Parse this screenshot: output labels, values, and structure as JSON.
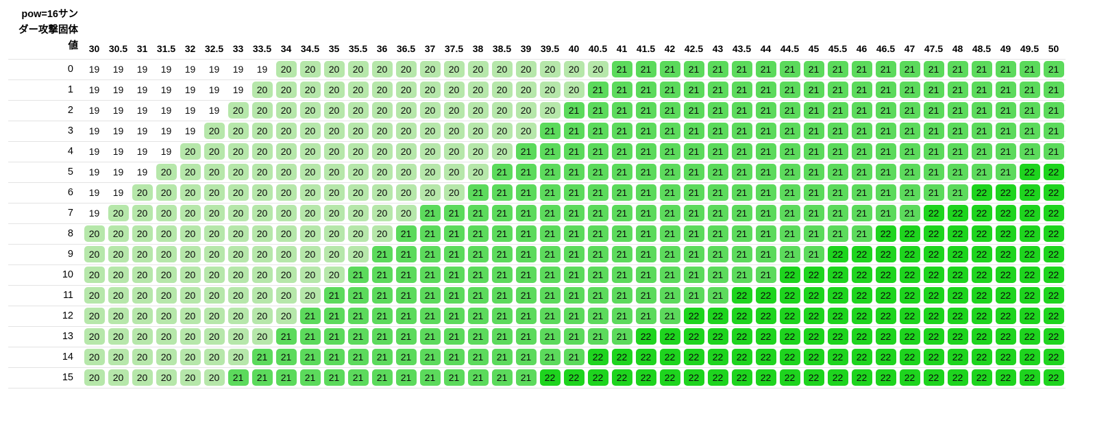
{
  "title": "pow=16サン\nダー攻撃固体\n値",
  "chart_data": {
    "type": "heatmap",
    "title": "pow=16サンダー攻撃固体値",
    "xlabel": "",
    "ylabel": "",
    "legend": "off",
    "grid": "horizontal-rules",
    "columns": [
      "30",
      "30.5",
      "31",
      "31.5",
      "32",
      "32.5",
      "33",
      "33.5",
      "34",
      "34.5",
      "35",
      "35.5",
      "36",
      "36.5",
      "37",
      "37.5",
      "38",
      "38.5",
      "39",
      "39.5",
      "40",
      "40.5",
      "41",
      "41.5",
      "42",
      "42.5",
      "43",
      "43.5",
      "44",
      "44.5",
      "45",
      "45.5",
      "46",
      "46.5",
      "47",
      "47.5",
      "48",
      "48.5",
      "49",
      "49.5",
      "50"
    ],
    "row_labels": [
      "0",
      "1",
      "2",
      "3",
      "4",
      "5",
      "6",
      "7",
      "8",
      "9",
      "10",
      "11",
      "12",
      "13",
      "14",
      "15"
    ],
    "values": [
      [
        19,
        19,
        19,
        19,
        19,
        19,
        19,
        19,
        20,
        20,
        20,
        20,
        20,
        20,
        20,
        20,
        20,
        20,
        20,
        20,
        20,
        20,
        21,
        21,
        21,
        21,
        21,
        21,
        21,
        21,
        21,
        21,
        21,
        21,
        21,
        21,
        21,
        21,
        21,
        21,
        21
      ],
      [
        19,
        19,
        19,
        19,
        19,
        19,
        19,
        20,
        20,
        20,
        20,
        20,
        20,
        20,
        20,
        20,
        20,
        20,
        20,
        20,
        20,
        21,
        21,
        21,
        21,
        21,
        21,
        21,
        21,
        21,
        21,
        21,
        21,
        21,
        21,
        21,
        21,
        21,
        21,
        21,
        21
      ],
      [
        19,
        19,
        19,
        19,
        19,
        19,
        20,
        20,
        20,
        20,
        20,
        20,
        20,
        20,
        20,
        20,
        20,
        20,
        20,
        20,
        21,
        21,
        21,
        21,
        21,
        21,
        21,
        21,
        21,
        21,
        21,
        21,
        21,
        21,
        21,
        21,
        21,
        21,
        21,
        21,
        21
      ],
      [
        19,
        19,
        19,
        19,
        19,
        20,
        20,
        20,
        20,
        20,
        20,
        20,
        20,
        20,
        20,
        20,
        20,
        20,
        20,
        21,
        21,
        21,
        21,
        21,
        21,
        21,
        21,
        21,
        21,
        21,
        21,
        21,
        21,
        21,
        21,
        21,
        21,
        21,
        21,
        21,
        21
      ],
      [
        19,
        19,
        19,
        19,
        20,
        20,
        20,
        20,
        20,
        20,
        20,
        20,
        20,
        20,
        20,
        20,
        20,
        20,
        21,
        21,
        21,
        21,
        21,
        21,
        21,
        21,
        21,
        21,
        21,
        21,
        21,
        21,
        21,
        21,
        21,
        21,
        21,
        21,
        21,
        21,
        21
      ],
      [
        19,
        19,
        19,
        20,
        20,
        20,
        20,
        20,
        20,
        20,
        20,
        20,
        20,
        20,
        20,
        20,
        20,
        21,
        21,
        21,
        21,
        21,
        21,
        21,
        21,
        21,
        21,
        21,
        21,
        21,
        21,
        21,
        21,
        21,
        21,
        21,
        21,
        21,
        21,
        22,
        22
      ],
      [
        19,
        19,
        20,
        20,
        20,
        20,
        20,
        20,
        20,
        20,
        20,
        20,
        20,
        20,
        20,
        20,
        21,
        21,
        21,
        21,
        21,
        21,
        21,
        21,
        21,
        21,
        21,
        21,
        21,
        21,
        21,
        21,
        21,
        21,
        21,
        21,
        21,
        22,
        22,
        22,
        22
      ],
      [
        19,
        20,
        20,
        20,
        20,
        20,
        20,
        20,
        20,
        20,
        20,
        20,
        20,
        20,
        21,
        21,
        21,
        21,
        21,
        21,
        21,
        21,
        21,
        21,
        21,
        21,
        21,
        21,
        21,
        21,
        21,
        21,
        21,
        21,
        21,
        22,
        22,
        22,
        22,
        22,
        22
      ],
      [
        20,
        20,
        20,
        20,
        20,
        20,
        20,
        20,
        20,
        20,
        20,
        20,
        20,
        21,
        21,
        21,
        21,
        21,
        21,
        21,
        21,
        21,
        21,
        21,
        21,
        21,
        21,
        21,
        21,
        21,
        21,
        21,
        21,
        22,
        22,
        22,
        22,
        22,
        22,
        22,
        22
      ],
      [
        20,
        20,
        20,
        20,
        20,
        20,
        20,
        20,
        20,
        20,
        20,
        20,
        21,
        21,
        21,
        21,
        21,
        21,
        21,
        21,
        21,
        21,
        21,
        21,
        21,
        21,
        21,
        21,
        21,
        21,
        21,
        22,
        22,
        22,
        22,
        22,
        22,
        22,
        22,
        22,
        22
      ],
      [
        20,
        20,
        20,
        20,
        20,
        20,
        20,
        20,
        20,
        20,
        20,
        21,
        21,
        21,
        21,
        21,
        21,
        21,
        21,
        21,
        21,
        21,
        21,
        21,
        21,
        21,
        21,
        21,
        21,
        22,
        22,
        22,
        22,
        22,
        22,
        22,
        22,
        22,
        22,
        22,
        22
      ],
      [
        20,
        20,
        20,
        20,
        20,
        20,
        20,
        20,
        20,
        20,
        21,
        21,
        21,
        21,
        21,
        21,
        21,
        21,
        21,
        21,
        21,
        21,
        21,
        21,
        21,
        21,
        21,
        22,
        22,
        22,
        22,
        22,
        22,
        22,
        22,
        22,
        22,
        22,
        22,
        22,
        22
      ],
      [
        20,
        20,
        20,
        20,
        20,
        20,
        20,
        20,
        20,
        21,
        21,
        21,
        21,
        21,
        21,
        21,
        21,
        21,
        21,
        21,
        21,
        21,
        21,
        21,
        21,
        22,
        22,
        22,
        22,
        22,
        22,
        22,
        22,
        22,
        22,
        22,
        22,
        22,
        22,
        22,
        22
      ],
      [
        20,
        20,
        20,
        20,
        20,
        20,
        20,
        20,
        21,
        21,
        21,
        21,
        21,
        21,
        21,
        21,
        21,
        21,
        21,
        21,
        21,
        21,
        21,
        22,
        22,
        22,
        22,
        22,
        22,
        22,
        22,
        22,
        22,
        22,
        22,
        22,
        22,
        22,
        22,
        22,
        22
      ],
      [
        20,
        20,
        20,
        20,
        20,
        20,
        20,
        21,
        21,
        21,
        21,
        21,
        21,
        21,
        21,
        21,
        21,
        21,
        21,
        21,
        21,
        22,
        22,
        22,
        22,
        22,
        22,
        22,
        22,
        22,
        22,
        22,
        22,
        22,
        22,
        22,
        22,
        22,
        22,
        22,
        22
      ],
      [
        20,
        20,
        20,
        20,
        20,
        20,
        21,
        21,
        21,
        21,
        21,
        21,
        21,
        21,
        21,
        21,
        21,
        21,
        21,
        22,
        22,
        22,
        22,
        22,
        22,
        22,
        22,
        22,
        22,
        22,
        22,
        22,
        22,
        22,
        22,
        22,
        22,
        22,
        22,
        22,
        22
      ]
    ],
    "value_colors": {
      "19": "#ffffff",
      "20": "#b6e7aa",
      "21": "#5cda5c",
      "22": "#1ed41e"
    },
    "rule_color": "#e3e3e3",
    "text_color": "#0a0a0a"
  }
}
